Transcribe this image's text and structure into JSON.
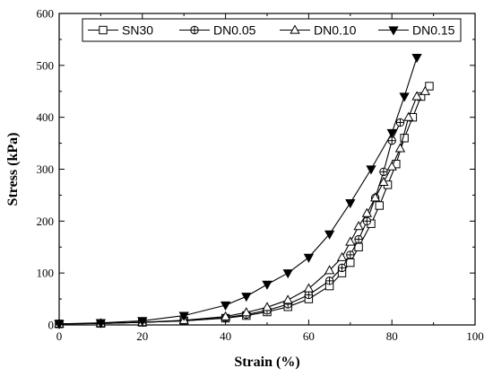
{
  "chart_data": {
    "type": "line",
    "title": "",
    "xlabel": "Strain (%)",
    "ylabel": "Stress (kPa)",
    "xlim": [
      0,
      100
    ],
    "ylim": [
      0,
      600
    ],
    "xticks": [
      0,
      20,
      40,
      60,
      80,
      100
    ],
    "yticks": [
      0,
      100,
      200,
      300,
      400,
      500,
      600
    ],
    "x_tick_labels": [
      "0",
      "20",
      "40",
      "60",
      "80",
      "100"
    ],
    "y_tick_labels": [
      "0",
      "100",
      "200",
      "300",
      "400",
      "500",
      "600"
    ],
    "grid": false,
    "legend_position": "top-right",
    "series": [
      {
        "name": "SN30",
        "marker": "square",
        "x": [
          0,
          10,
          20,
          30,
          40,
          45,
          50,
          55,
          60,
          65,
          68,
          70,
          72,
          75,
          77,
          79,
          81,
          83,
          85,
          87,
          89
        ],
        "y": [
          2,
          3,
          5,
          8,
          13,
          18,
          25,
          35,
          50,
          75,
          100,
          120,
          150,
          195,
          230,
          270,
          310,
          360,
          400,
          440,
          460
        ]
      },
      {
        "name": "DN0.05",
        "marker": "circle-cross",
        "x": [
          0,
          10,
          20,
          30,
          40,
          45,
          50,
          55,
          60,
          65,
          68,
          70,
          72,
          74,
          76,
          78,
          80,
          82
        ],
        "y": [
          2,
          3,
          5,
          8,
          14,
          20,
          28,
          40,
          58,
          85,
          110,
          135,
          165,
          200,
          245,
          295,
          355,
          390
        ]
      },
      {
        "name": "DN0.10",
        "marker": "triangle-up",
        "x": [
          0,
          10,
          20,
          30,
          40,
          45,
          50,
          55,
          60,
          65,
          68,
          70,
          72,
          74,
          76,
          78,
          80,
          82,
          84,
          86,
          88
        ],
        "y": [
          2,
          3,
          5,
          9,
          16,
          24,
          34,
          48,
          70,
          105,
          130,
          160,
          190,
          215,
          245,
          275,
          305,
          340,
          400,
          440,
          450
        ]
      },
      {
        "name": "DN0.15",
        "marker": "triangle-down",
        "x": [
          0,
          10,
          20,
          30,
          40,
          45,
          50,
          55,
          60,
          65,
          70,
          75,
          80,
          83,
          86
        ],
        "y": [
          2,
          4,
          8,
          18,
          38,
          55,
          78,
          100,
          130,
          175,
          235,
          300,
          370,
          440,
          515
        ]
      }
    ],
    "colors": {
      "line": "#000000",
      "background": "#ffffff"
    }
  }
}
